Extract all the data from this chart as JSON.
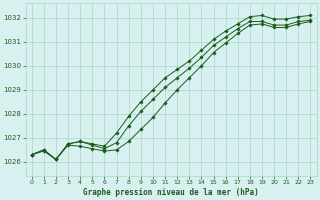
{
  "title": "Graphe pression niveau de la mer (hPa)",
  "bg_color": "#d8f0f0",
  "grid_color": "#a8d8c8",
  "line_color": "#1a5c1a",
  "text_color": "#1a5c1a",
  "xlim": [
    -0.5,
    23.5
  ],
  "ylim": [
    1025.4,
    1032.6
  ],
  "yticks": [
    1026,
    1027,
    1028,
    1029,
    1030,
    1031,
    1032
  ],
  "xticks": [
    0,
    1,
    2,
    3,
    4,
    5,
    6,
    7,
    8,
    9,
    10,
    11,
    12,
    13,
    14,
    15,
    16,
    17,
    18,
    19,
    20,
    21,
    22,
    23
  ],
  "series": {
    "line1": [
      1026.3,
      1026.5,
      1026.1,
      1026.75,
      1026.85,
      1026.75,
      1026.65,
      1027.2,
      1027.9,
      1028.5,
      1029.0,
      1029.5,
      1029.85,
      1030.2,
      1030.65,
      1031.1,
      1031.45,
      1031.75,
      1032.05,
      1032.1,
      1031.95,
      1031.95,
      1032.05,
      1032.1
    ],
    "line2": [
      1026.3,
      1026.5,
      1026.1,
      1026.75,
      1026.85,
      1026.7,
      1026.55,
      1026.8,
      1027.5,
      1028.1,
      1028.6,
      1029.1,
      1029.5,
      1029.9,
      1030.35,
      1030.85,
      1031.2,
      1031.55,
      1031.85,
      1031.85,
      1031.7,
      1031.7,
      1031.85,
      1031.9
    ],
    "line3": [
      1026.3,
      1026.45,
      1026.1,
      1026.7,
      1026.65,
      1026.55,
      1026.45,
      1026.5,
      1026.85,
      1027.35,
      1027.85,
      1028.45,
      1029.0,
      1029.5,
      1030.0,
      1030.55,
      1030.95,
      1031.35,
      1031.7,
      1031.75,
      1031.6,
      1031.6,
      1031.75,
      1031.85
    ]
  }
}
